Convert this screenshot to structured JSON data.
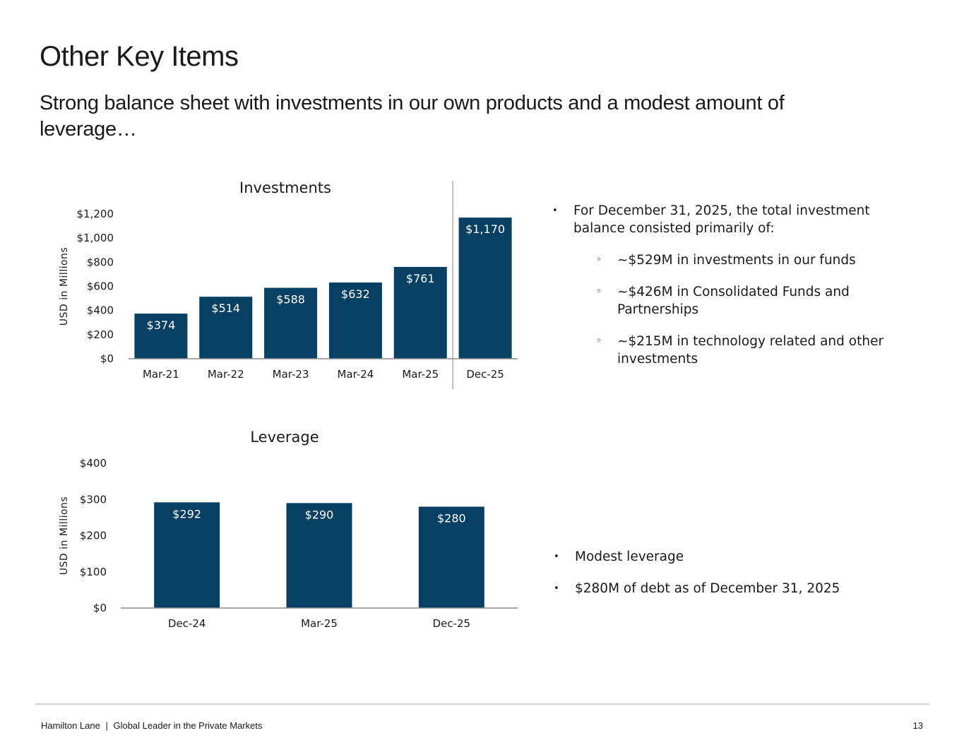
{
  "header": {
    "title": "Other Key Items",
    "subtitle": "Strong balance sheet with investments in our own products and a modest amount of leverage…"
  },
  "chart_data": [
    {
      "type": "bar",
      "title": "Investments",
      "ylabel": "USD in Millions",
      "categories": [
        "Mar-21",
        "Mar-22",
        "Mar-23",
        "Mar-24",
        "Mar-25",
        "Dec-25"
      ],
      "values": [
        374,
        514,
        588,
        632,
        761,
        1170
      ],
      "value_labels": [
        "$374",
        "$514",
        "$588",
        "$632",
        "$761",
        "$1,170"
      ],
      "yticks": [
        "$0",
        "$200",
        "$400",
        "$600",
        "$800",
        "$1,000",
        "$1,200"
      ],
      "ylim": [
        0,
        1200
      ],
      "bar_color": "#084064",
      "divider_before": "Dec-25"
    },
    {
      "type": "bar",
      "title": "Leverage",
      "ylabel": "USD in Millions",
      "categories": [
        "Dec-24",
        "Mar-25",
        "Dec-25"
      ],
      "values": [
        292,
        290,
        280
      ],
      "value_labels": [
        "$292",
        "$290",
        "$280"
      ],
      "yticks": [
        "$0",
        "$100",
        "$200",
        "$300",
        "$400"
      ],
      "ylim": [
        0,
        400
      ],
      "bar_color": "#084064"
    }
  ],
  "investments_notes": {
    "main": "For December 31, 2025, the total investment balance consisted primarily of:",
    "items": [
      "~$529M in investments in our funds",
      "~$426M in Consolidated Funds and Partnerships",
      "~$215M in technology related and other investments"
    ]
  },
  "leverage_notes": {
    "items": [
      "Modest leverage",
      "$280M of debt as of December 31, 2025"
    ]
  },
  "footer": {
    "company": "Hamilton Lane",
    "separator": "|",
    "tagline": "Global Leader in the Private Markets",
    "page": "13"
  }
}
